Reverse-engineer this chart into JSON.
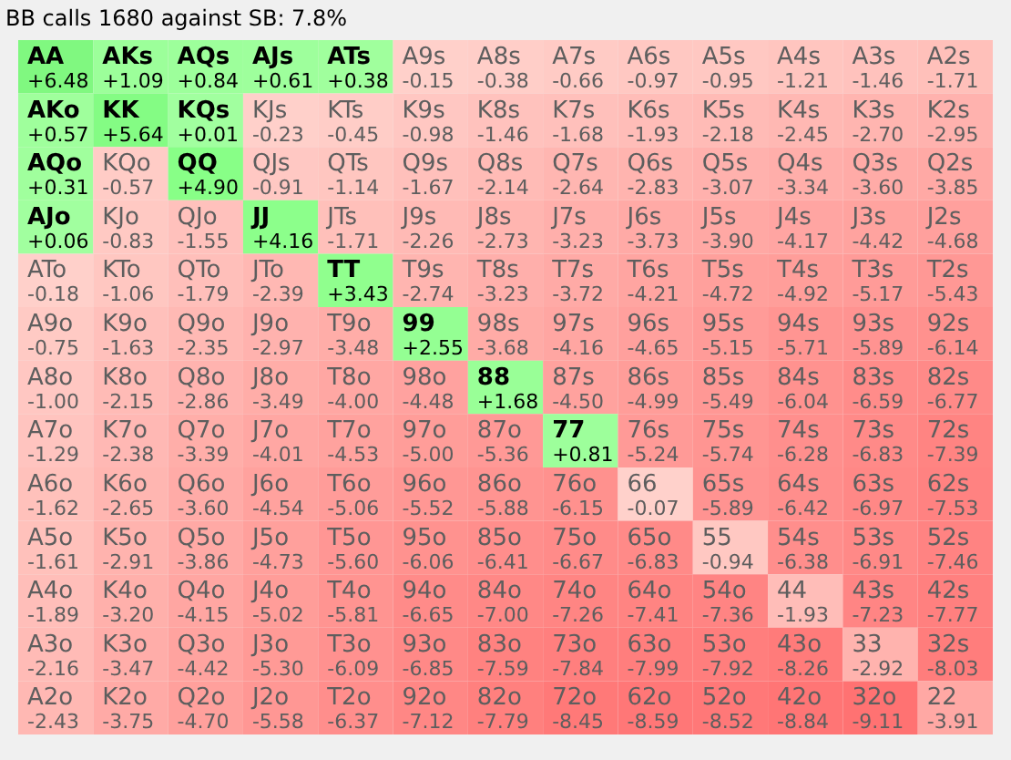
{
  "chart_data": {
    "type": "heatmap",
    "title": "BB calls 1680 against SB: 7.8%",
    "categories": [
      null,
      null,
      null,
      null,
      null,
      null,
      null,
      null,
      null,
      null,
      null,
      null,
      null
    ],
    "y_categories": [
      null,
      null,
      null,
      null,
      null,
      null,
      null,
      null,
      null,
      null,
      null,
      null,
      null
    ],
    "tick_labels": false,
    "cells": [
      [
        6.48,
        1.09,
        0.84,
        0.61,
        0.38,
        -0.15,
        -0.38,
        -0.66,
        -0.97,
        -0.95,
        -1.21,
        -1.46,
        -1.71
      ],
      [
        0.57,
        5.64,
        0.01,
        -0.23,
        -0.45,
        -0.98,
        -1.46,
        -1.68,
        -1.93,
        -2.18,
        -2.45,
        -2.7,
        -2.95
      ],
      [
        0.31,
        -0.57,
        4.9,
        -0.91,
        -1.14,
        -1.67,
        -2.14,
        -2.64,
        -2.83,
        -3.07,
        -3.34,
        -3.6,
        -3.85
      ],
      [
        0.06,
        -0.83,
        -1.55,
        4.16,
        -1.71,
        -2.26,
        -2.73,
        -3.23,
        -3.73,
        -3.9,
        -4.17,
        -4.42,
        -4.68
      ],
      [
        -0.18,
        -1.06,
        -1.79,
        -2.39,
        3.43,
        -2.74,
        -3.23,
        -3.72,
        -4.21,
        -4.72,
        -4.92,
        -5.17,
        -5.43
      ],
      [
        -0.75,
        -1.63,
        -2.35,
        -2.97,
        -3.48,
        2.55,
        -3.68,
        -4.16,
        -4.65,
        -5.15,
        -5.71,
        -5.89,
        -6.14
      ],
      [
        -1.0,
        -2.15,
        -2.86,
        -3.49,
        -4.0,
        -4.48,
        1.68,
        -4.5,
        -4.99,
        -5.49,
        -6.04,
        -6.59,
        -6.77
      ],
      [
        -1.29,
        -2.38,
        -3.39,
        -4.01,
        -4.53,
        -5.0,
        -5.36,
        0.81,
        -5.24,
        -5.74,
        -6.28,
        -6.83,
        -7.39
      ],
      [
        -1.62,
        -2.65,
        -3.6,
        -4.54,
        -5.06,
        -5.52,
        -5.88,
        -6.15,
        -0.07,
        -5.89,
        -6.42,
        -6.97,
        -7.53
      ],
      [
        -1.61,
        -2.91,
        -3.86,
        -4.73,
        -5.6,
        -6.06,
        -6.41,
        -6.67,
        -6.83,
        -0.94,
        -6.38,
        -6.91,
        -7.46
      ],
      [
        -1.89,
        -3.2,
        -4.15,
        -5.02,
        -5.81,
        -6.65,
        -7.0,
        -7.26,
        -7.41,
        -7.36,
        -1.93,
        -7.23,
        -7.77
      ],
      [
        -2.16,
        -3.47,
        -4.42,
        -5.3,
        -6.09,
        -6.85,
        -7.59,
        -7.84,
        -7.99,
        -7.92,
        -8.26,
        -2.92,
        -8.03
      ],
      [
        -2.43,
        -3.75,
        -4.7,
        -5.58,
        -6.37,
        -7.12,
        -7.79,
        -8.45,
        -8.59,
        -8.52,
        -8.84,
        -9.11,
        -3.91
      ]
    ],
    "cell_labels": [
      [
        "+6.48",
        "+1.09",
        "+0.84",
        "+0.61",
        "+0.38",
        "-0.15",
        "-0.38",
        "-0.66",
        "-0.97",
        "-0.95",
        "-1.21",
        "-1.46",
        "-1.71"
      ],
      [
        "+0.57",
        "+5.64",
        "+0.01",
        "-0.23",
        "-0.45",
        "-0.98",
        "-1.46",
        "-1.68",
        "-1.93",
        "-2.18",
        "-2.45",
        "-2.70",
        "-2.95"
      ],
      [
        "+0.31",
        "-0.57",
        "+4.90",
        "-0.91",
        "-1.14",
        "-1.67",
        "-2.14",
        "-2.64",
        "-2.83",
        "-3.07",
        "-3.34",
        "-3.60",
        "-3.85"
      ],
      [
        "+0.06",
        "-0.83",
        "-1.55",
        "+4.16",
        "-1.71",
        "-2.26",
        "-2.73",
        "-3.23",
        "-3.73",
        "-3.90",
        "-4.17",
        "-4.42",
        "-4.68"
      ],
      [
        "-0.18",
        "-1.06",
        "-1.79",
        "-2.39",
        "+3.43",
        "-2.74",
        "-3.23",
        "-3.72",
        "-4.21",
        "-4.72",
        "-4.92",
        "-5.17",
        "-5.43"
      ],
      [
        "-0.75",
        "-1.63",
        "-2.35",
        "-2.97",
        "-3.48",
        "+2.55",
        "-3.68",
        "-4.16",
        "-4.65",
        "-5.15",
        "-5.71",
        "-5.89",
        "-6.14"
      ],
      [
        "-1.00",
        "-2.15",
        "-2.86",
        "-3.49",
        "-4.00",
        "-4.48",
        "+1.68",
        "-4.50",
        "-4.99",
        "-5.49",
        "-6.04",
        "-6.59",
        "-6.77"
      ],
      [
        "-1.29",
        "-2.38",
        "-3.39",
        "-4.01",
        "-4.53",
        "-5.00",
        "-5.36",
        "+0.81",
        "-5.24",
        "-5.74",
        "-6.28",
        "-6.83",
        "-7.39"
      ],
      [
        "-1.62",
        "-2.65",
        "-3.60",
        "-4.54",
        "-5.06",
        "-5.52",
        "-5.88",
        "-6.15",
        "-0.07",
        "-5.89",
        "-6.42",
        "-6.97",
        "-7.53"
      ],
      [
        "-1.61",
        "-2.91",
        "-3.86",
        "-4.73",
        "-5.60",
        "-6.06",
        "-6.41",
        "-6.67",
        "-6.83",
        "-0.94",
        "-6.38",
        "-6.91",
        "-7.46"
      ],
      [
        "-1.89",
        "-3.20",
        "-4.15",
        "-5.02",
        "-5.81",
        "-6.65",
        "-7.00",
        "-7.26",
        "-7.41",
        "-7.36",
        "-1.93",
        "-7.23",
        "-7.77"
      ],
      [
        "-2.16",
        "-3.47",
        "-4.42",
        "-5.30",
        "-6.09",
        "-6.85",
        "-7.59",
        "-7.84",
        "-7.99",
        "-7.92",
        "-8.26",
        "-2.92",
        "-8.03"
      ],
      [
        "-2.43",
        "-3.75",
        "-4.70",
        "-5.58",
        "-6.37",
        "-7.12",
        "-7.79",
        "-8.45",
        "-8.59",
        "-8.52",
        "-8.84",
        "-9.11",
        "-3.91"
      ]
    ],
    "annotations": [
      "AA",
      "AKs",
      "AQs",
      "AJs",
      "ATs",
      "A9s",
      "A8s",
      "A7s",
      "A6s",
      "A5s",
      "A4s",
      "A3s",
      "A2s",
      "AKo",
      "KK",
      "KQs",
      "KJs",
      "KTs",
      "K9s",
      "K8s",
      "K7s",
      "K6s",
      "K5s",
      "K4s",
      "K3s",
      "K2s",
      "AQo",
      "KQo",
      "QQ",
      "QJs",
      "QTs",
      "Q9s",
      "Q8s",
      "Q7s",
      "Q6s",
      "Q5s",
      "Q4s",
      "Q3s",
      "Q2s",
      "AJo",
      "KJo",
      "QJo",
      "JJ",
      "JTs",
      "J9s",
      "J8s",
      "J7s",
      "J6s",
      "J5s",
      "J4s",
      "J3s",
      "J2s",
      "ATo",
      "KTo",
      "QTo",
      "JTo",
      "TT",
      "T9s",
      "T8s",
      "T7s",
      "T6s",
      "T5s",
      "T4s",
      "T3s",
      "T2s",
      "A9o",
      "K9o",
      "Q9o",
      "J9o",
      "T9o",
      "99",
      "98s",
      "97s",
      "96s",
      "95s",
      "94s",
      "93s",
      "92s",
      "A8o",
      "K8o",
      "Q8o",
      "J8o",
      "T8o",
      "98o",
      "88",
      "87s",
      "86s",
      "85s",
      "84s",
      "83s",
      "82s",
      "A7o",
      "K7o",
      "Q7o",
      "J7o",
      "T7o",
      "97o",
      "87o",
      "77",
      "76s",
      "75s",
      "74s",
      "73s",
      "72s",
      "A6o",
      "K6o",
      "Q6o",
      "J6o",
      "T6o",
      "96o",
      "86o",
      "76o",
      "66",
      "65s",
      "64s",
      "63s",
      "62s",
      "A5o",
      "K5o",
      "Q5o",
      "J5o",
      "T5o",
      "95o",
      "85o",
      "75o",
      "65o",
      "55",
      "54s",
      "53s",
      "52s",
      "A4o",
      "K4o",
      "Q4o",
      "J4o",
      "T4o",
      "94o",
      "84o",
      "74o",
      "64o",
      "54o",
      "44",
      "43s",
      "42s",
      "A3o",
      "K3o",
      "Q3o",
      "J3o",
      "T3o",
      "93o",
      "83o",
      "73o",
      "63o",
      "53o",
      "43o",
      "33",
      "32s",
      "A2o",
      "K2o",
      "Q2o",
      "J2o",
      "T2o",
      "92o",
      "82o",
      "72o",
      "62o",
      "52o",
      "42o",
      "32o",
      "22"
    ]
  }
}
